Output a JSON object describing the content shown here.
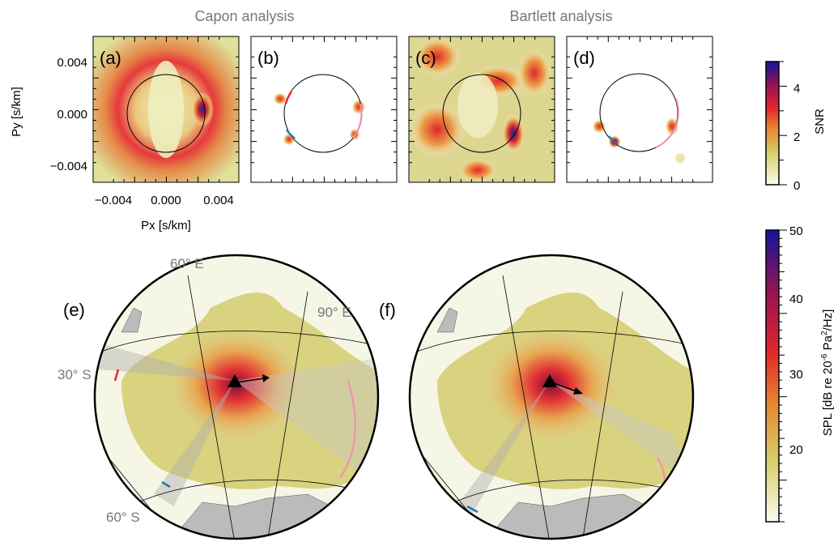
{
  "titles": {
    "capon": "Capon analysis",
    "bartlett": "Bartlett analysis"
  },
  "panel_labels": [
    "(a)",
    "(b)",
    "(c)",
    "(d)",
    "(e)",
    "(f)"
  ],
  "axes": {
    "ylabel": "Py [s/km]",
    "xlabel": "Px [s/km]",
    "yticks": [
      "0.004",
      "0.000",
      "−0.004"
    ],
    "xticks": [
      "−0.004",
      "0.000",
      "0.004"
    ]
  },
  "map_labels": {
    "lon60": "60° E",
    "lon90": "90° E",
    "lat30": "30° S",
    "lat60": "60° S"
  },
  "colorbar_snr": {
    "label": "SNR",
    "ticks": [
      "4",
      "2",
      "0"
    ],
    "min": 0,
    "max": 5
  },
  "colorbar_spl": {
    "label": "SPL [dB re 20",
    "label_sup1": "-6",
    "label_mid": " Pa",
    "label_sup2": "2",
    "label_end": "/Hz]",
    "ticks": [
      "50",
      "40",
      "30",
      "20"
    ],
    "min": 15,
    "max": 50
  },
  "colors": {
    "red_arc": "#e8262a",
    "blue_arc": "#1f77b4",
    "pink_arc": "#f08cb4",
    "label_gray": "#777777"
  },
  "chart_data": [
    {
      "type": "heatmap",
      "panel": "(a)",
      "method": "Capon",
      "quantity": "SNR",
      "xlim": [
        -0.005,
        0.005
      ],
      "ylim": [
        -0.005,
        0.005
      ],
      "slowness_circle_radius": 0.0028,
      "peak": {
        "px": 0.0025,
        "py": 0.0,
        "snr": 4.6
      }
    },
    {
      "type": "heatmap",
      "panel": "(b)",
      "method": "Capon",
      "quantity": "SNR",
      "xlim": [
        -0.005,
        0.005
      ],
      "ylim": [
        -0.005,
        0.005
      ],
      "slowness_circle_radius": 0.0028,
      "peaks": [
        {
          "px": -0.0035,
          "py": 0.001,
          "snr": 2.5
        },
        {
          "px": 0.0027,
          "py": 0.0005,
          "snr": 3.0
        },
        {
          "px": -0.0025,
          "py": -0.0018,
          "snr": 2.0
        },
        {
          "px": 0.0025,
          "py": -0.0015,
          "snr": 2.0
        }
      ]
    },
    {
      "type": "heatmap",
      "panel": "(c)",
      "method": "Bartlett",
      "quantity": "SNR",
      "xlim": [
        -0.005,
        0.005
      ],
      "ylim": [
        -0.005,
        0.005
      ],
      "slowness_circle_radius": 0.0028,
      "peak": {
        "px": 0.0025,
        "py": -0.0015,
        "snr": 4.5
      }
    },
    {
      "type": "heatmap",
      "panel": "(d)",
      "method": "Bartlett",
      "quantity": "SNR",
      "xlim": [
        -0.005,
        0.005
      ],
      "ylim": [
        -0.005,
        0.005
      ],
      "slowness_circle_radius": 0.0028,
      "peaks": [
        {
          "px": -0.0033,
          "py": -0.0008,
          "snr": 2.5
        },
        {
          "px": -0.0017,
          "py": -0.0018,
          "snr": 3.0
        },
        {
          "px": 0.0026,
          "py": -0.0008,
          "snr": 2.8
        }
      ]
    },
    {
      "type": "heatmap",
      "panel": "(e)",
      "method": "Capon",
      "quantity": "SPL",
      "unit": "dB re 20-6 Pa2/Hz",
      "range": [
        15,
        50
      ]
    },
    {
      "type": "heatmap",
      "panel": "(f)",
      "method": "Bartlett",
      "quantity": "SPL",
      "unit": "dB re 20-6 Pa2/Hz",
      "range": [
        15,
        50
      ]
    }
  ]
}
